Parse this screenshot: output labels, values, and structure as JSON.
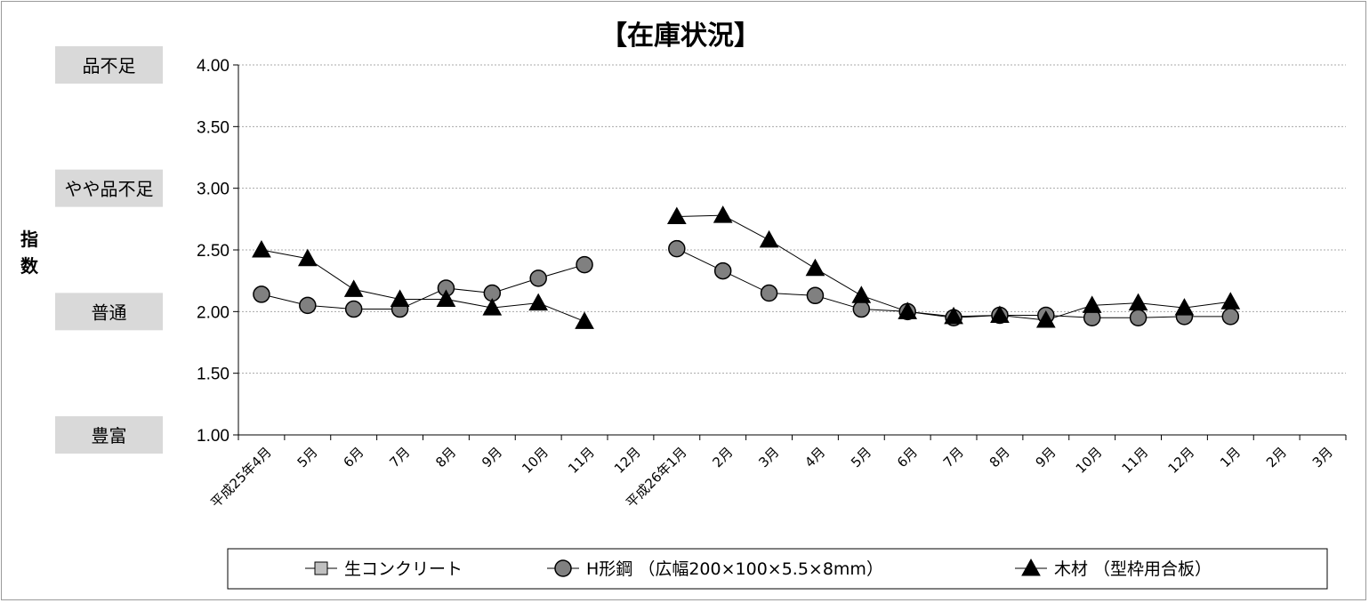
{
  "chart_data": {
    "type": "line",
    "title": "【在庫状況】",
    "ylabel": "指数",
    "ylim": [
      1.0,
      4.0
    ],
    "yticks": [
      "4.00",
      "3.50",
      "3.00",
      "2.50",
      "2.00",
      "1.50",
      "1.00"
    ],
    "grid": true,
    "y_categories": [
      {
        "label": "品不足",
        "value": 4.0
      },
      {
        "label": "やや品不足",
        "value": 3.0
      },
      {
        "label": "普通",
        "value": 2.0
      },
      {
        "label": "豊富",
        "value": 1.0
      }
    ],
    "categories": [
      "平成25年4月",
      "5月",
      "6月",
      "7月",
      "8月",
      "9月",
      "10月",
      "11月",
      "12月",
      "平成26年1月",
      "2月",
      "3月",
      "4月",
      "5月",
      "6月",
      "7月",
      "8月",
      "9月",
      "10月",
      "11月",
      "12月",
      "1月",
      "2月",
      "3月"
    ],
    "series": [
      {
        "name": "生コンクリート",
        "marker": "square",
        "color": "#c0c0c0",
        "values": [
          null,
          null,
          null,
          null,
          null,
          null,
          null,
          null,
          null,
          null,
          null,
          null,
          null,
          null,
          null,
          null,
          null,
          null,
          null,
          null,
          null,
          null,
          null,
          null
        ]
      },
      {
        "name": "H形鋼 （広幅200×100×5.5×8mm）",
        "marker": "circle",
        "color": "#808080",
        "values": [
          2.14,
          2.05,
          2.02,
          2.02,
          2.19,
          2.15,
          2.27,
          2.38,
          null,
          2.51,
          2.33,
          2.15,
          2.13,
          2.02,
          2.0,
          1.95,
          1.97,
          1.97,
          1.95,
          1.95,
          1.96,
          1.96,
          null,
          null
        ]
      },
      {
        "name": "木材 （型枠用合板）",
        "marker": "triangle",
        "color": "#000000",
        "values": [
          2.5,
          2.43,
          2.18,
          2.1,
          2.1,
          2.03,
          2.07,
          1.92,
          null,
          2.77,
          2.78,
          2.58,
          2.35,
          2.13,
          2.0,
          1.96,
          1.97,
          1.93,
          2.05,
          2.07,
          2.03,
          2.08,
          null,
          null
        ]
      }
    ],
    "legend_position": "bottom"
  }
}
